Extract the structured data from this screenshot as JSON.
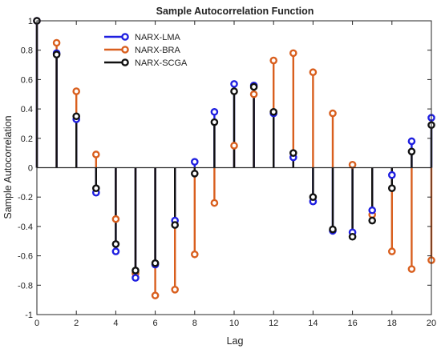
{
  "chart_data": {
    "type": "stem",
    "title": "Sample Autocorrelation Function",
    "xlabel": "Lag",
    "ylabel": "Sample Autocorrelation",
    "xlim": [
      0,
      20
    ],
    "ylim": [
      -1,
      1
    ],
    "x_ticks": [
      "0",
      "2",
      "4",
      "6",
      "8",
      "10",
      "12",
      "14",
      "16",
      "18",
      "20"
    ],
    "y_ticks": [
      "-1",
      "-0.8",
      "-0.6",
      "-0.4",
      "-0.2",
      "0",
      "0.2",
      "0.4",
      "0.6",
      "0.8",
      "1"
    ],
    "grid": false,
    "legend_position": "top-left",
    "x": [
      0,
      1,
      2,
      3,
      4,
      5,
      6,
      7,
      8,
      9,
      10,
      11,
      12,
      13,
      14,
      15,
      16,
      17,
      18,
      19,
      20
    ],
    "series": [
      {
        "name": "NARX-LMA",
        "color": "#1f1fe0",
        "values": [
          1.0,
          0.78,
          0.33,
          -0.17,
          -0.57,
          -0.75,
          -0.66,
          -0.36,
          0.04,
          0.38,
          0.57,
          0.56,
          0.37,
          0.07,
          -0.23,
          -0.43,
          -0.44,
          -0.29,
          -0.05,
          0.18,
          0.34
        ]
      },
      {
        "name": "NARX-BRA",
        "color": "#d95f1e",
        "values": [
          1.0,
          0.85,
          0.52,
          0.09,
          -0.35,
          -0.72,
          -0.87,
          -0.83,
          -0.59,
          -0.24,
          0.15,
          0.5,
          0.73,
          0.78,
          0.65,
          0.37,
          0.02,
          -0.32,
          -0.57,
          -0.69,
          -0.63
        ]
      },
      {
        "name": "NARX-SCGA",
        "color": "#111111",
        "values": [
          1.0,
          0.77,
          0.35,
          -0.14,
          -0.52,
          -0.7,
          -0.65,
          -0.39,
          -0.04,
          0.31,
          0.52,
          0.55,
          0.38,
          0.1,
          -0.2,
          -0.42,
          -0.47,
          -0.36,
          -0.14,
          0.11,
          0.29
        ]
      }
    ]
  }
}
